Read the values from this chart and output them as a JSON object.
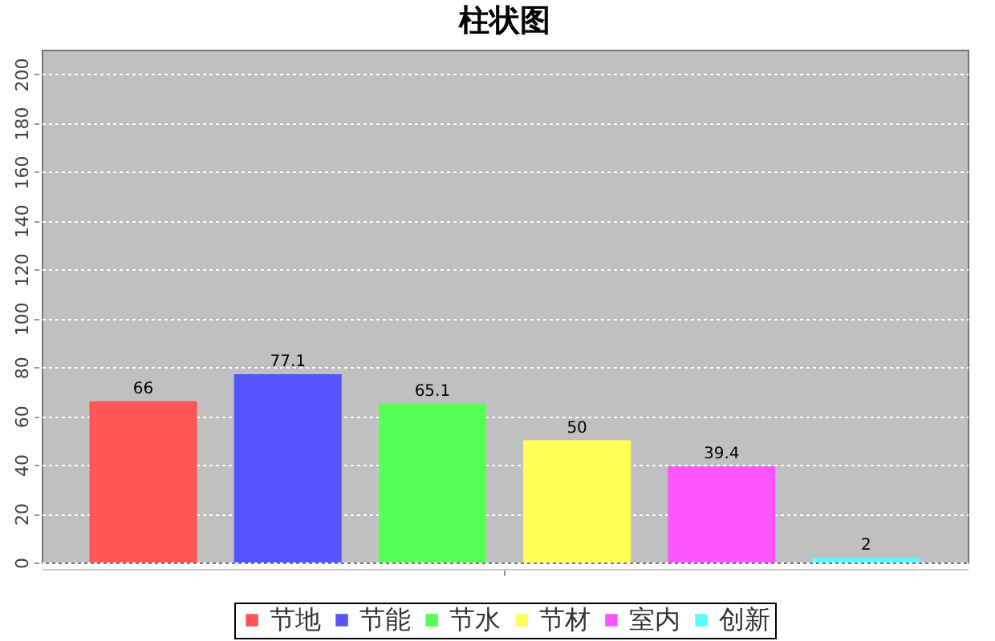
{
  "chart_data": {
    "type": "bar",
    "title": "柱状图",
    "categories": [
      null
    ],
    "series": [
      {
        "name": "节地",
        "color": "#ff5555",
        "values": [
          66
        ]
      },
      {
        "name": "节能",
        "color": "#5555ff",
        "values": [
          77.1
        ]
      },
      {
        "name": "节水",
        "color": "#55ff55",
        "values": [
          65.1
        ]
      },
      {
        "name": "节材",
        "color": "#ffff55",
        "values": [
          50
        ]
      },
      {
        "name": "室内",
        "color": "#ff55ff",
        "values": [
          39.4
        ]
      },
      {
        "name": "创新",
        "color": "#55ffff",
        "values": [
          2
        ]
      }
    ],
    "ylim": [
      0,
      210
    ],
    "yticks": [
      0,
      20,
      40,
      60,
      80,
      100,
      120,
      140,
      160,
      180,
      200
    ],
    "grid": "y",
    "legend": "bottom",
    "data_labels": true
  }
}
